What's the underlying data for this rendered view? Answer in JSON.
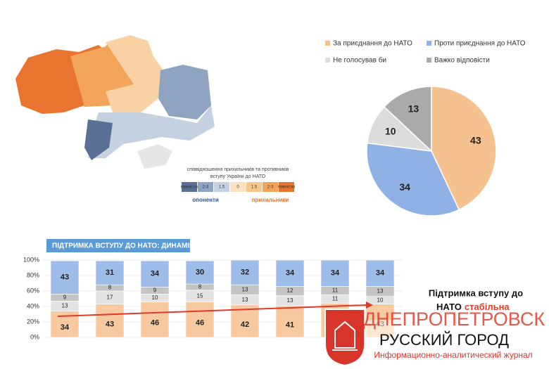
{
  "map": {
    "legend_title": [
      "співвідношення прихильників та противників",
      "вступу України до НАТО"
    ],
    "scale_labels": [
      "повністю",
      "2-3",
      "1.5",
      "0",
      "1.5",
      "2-3",
      "повністю"
    ],
    "opponents": "опоненти",
    "supporters": "прихильники"
  },
  "chart_data": [
    {
      "type": "pie",
      "categories": [
        "За приєднання до НАТО",
        "Проти приєднання до НАТО",
        "Не голосував би",
        "Важко відповісти"
      ],
      "values": [
        43,
        34,
        10,
        13
      ],
      "colors": [
        "#f5c18e",
        "#8fb1e5",
        "#dcdcdc",
        "#aaaaaa"
      ]
    },
    {
      "type": "stacked_bar",
      "title": "ПІДТРИМКА ВСТУПУ ДО НАТО: ДИНАМІКА",
      "categories": [
        null,
        null,
        null,
        null,
        null,
        null,
        null,
        null
      ],
      "series": [
        {
          "color": "#f7c9a0",
          "values": [
            34,
            43,
            46,
            46,
            42,
            41,
            44,
            43
          ]
        },
        {
          "color": "#e3e3e3",
          "values": [
            13,
            17,
            10,
            15,
            13,
            13,
            11,
            10
          ]
        },
        {
          "color": "#c4c4c4",
          "values": [
            9,
            8,
            9,
            8,
            13,
            12,
            11,
            13
          ]
        },
        {
          "color": "#9ebce8",
          "values": [
            43,
            31,
            34,
            30,
            32,
            34,
            34,
            34
          ]
        }
      ],
      "ylim": [
        0,
        100
      ],
      "yticks": [
        {
          "value": 0,
          "label": "0%"
        },
        {
          "value": 20,
          "label": "20%"
        },
        {
          "value": 40,
          "label": "40%"
        },
        {
          "value": 60,
          "label": "60%"
        },
        {
          "value": 80,
          "label": "80%"
        },
        {
          "value": 100,
          "label": "100%"
        }
      ]
    }
  ],
  "annotation": [
    "Підтримка вступу до",
    "НАТО",
    "стабільна"
  ],
  "watermark": {
    "title": "ДНЕПРОПЕТРОВСК",
    "subtitle": "РУССКИЙ ГОРОД",
    "tagline": "Информационно-аналитический журнал"
  }
}
